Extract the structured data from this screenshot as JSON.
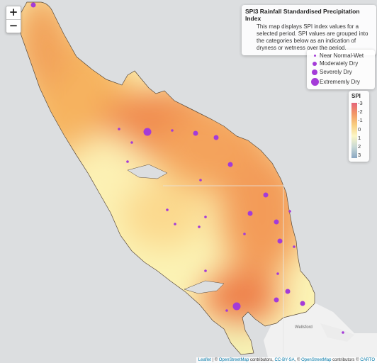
{
  "info": {
    "title": "SPI3 Rainfall Standardised Precipitation Index",
    "description": "This map displays SPI index values for a selected period. SPI values are grouped into the categories below as an indication of dryness or wetness over the period."
  },
  "legend": {
    "items": [
      {
        "label": "Near Normal-Wet",
        "level": 1
      },
      {
        "label": "Moderately Dry",
        "level": 2
      },
      {
        "label": "Severely Dry",
        "level": 3
      },
      {
        "label": "Extrememly Dry",
        "level": 4
      }
    ],
    "dot_color": "#a43bd8"
  },
  "spi_scale": {
    "title": "SPI",
    "ticks": [
      "-3",
      "-2",
      "-1",
      "0",
      "1",
      "2",
      "3"
    ]
  },
  "zoom": {
    "in_label": "+",
    "out_label": "−"
  },
  "attribution": {
    "leaflet": "Leaflet",
    "sep1": " | © ",
    "osm1": "OpenStreetMap",
    "text1": " contributors, ",
    "ccbysa": "CC-BY-SA",
    "text2": ", © ",
    "osm2": "OpenStreetMap",
    "text3": " contributors © ",
    "carto": "CARTO"
  },
  "place_label": "Wellsford",
  "colors": {
    "sea": "#dcdee0",
    "dry_extreme": "#ef7a4a",
    "normal": "#fbf3b2",
    "marker": "#a43bd8"
  }
}
